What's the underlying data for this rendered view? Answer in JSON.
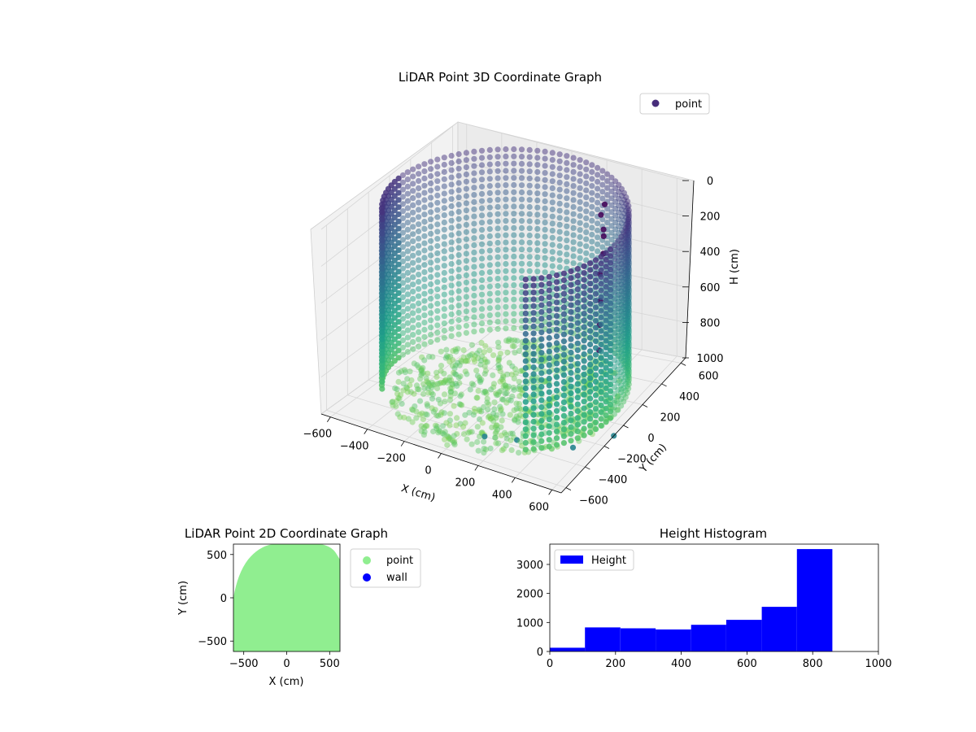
{
  "chart_data": [
    {
      "type": "scatter",
      "kind": "3d",
      "title": "LiDAR Point 3D Coordinate Graph",
      "xlabel": "X (cm)",
      "ylabel": "Y (cm)",
      "zlabel": "H (cm)",
      "xlim": [
        -650,
        650
      ],
      "ylim": [
        -650,
        650
      ],
      "zlim": [
        0,
        1000
      ],
      "z_inverted": true,
      "x_ticks": [
        -600,
        -400,
        -200,
        0,
        200,
        400,
        600
      ],
      "y_ticks": [
        -600,
        -400,
        -200,
        0,
        200,
        400,
        600
      ],
      "z_ticks": [
        0,
        200,
        400,
        600,
        800,
        1000
      ],
      "legend": {
        "placement": "top-right",
        "entries": [
          {
            "label": "point",
            "color": "#472d7b"
          }
        ]
      },
      "colormap": "viridis",
      "grid": true,
      "description_of_points": "ring wall of radius ~600 cm, height 0-1000 cm, missing a sector toward viewer; floor scatter near center; person-like cluster near (300,450)",
      "series": [
        {
          "name": "point",
          "ring_radius": 600,
          "angle_gap": [
            -2.5,
            -0.95
          ],
          "points": [
            {
              "x": 300,
              "y": 450,
              "h": 110
            },
            {
              "x": 290,
              "y": 430,
              "h": 160
            },
            {
              "x": 310,
              "y": 420,
              "h": 230
            },
            {
              "x": 300,
              "y": 440,
              "h": 280
            },
            {
              "x": 320,
              "y": 400,
              "h": 350
            },
            {
              "x": 340,
              "y": 330,
              "h": 420
            },
            {
              "x": 380,
              "y": 260,
              "h": 520
            },
            {
              "x": 420,
              "y": 180,
              "h": 600
            },
            {
              "x": 450,
              "y": 120,
              "h": 700
            },
            {
              "x": 100,
              "y": -400,
              "h": 1000
            },
            {
              "x": 250,
              "y": -350,
              "h": 1000
            },
            {
              "x": 650,
              "y": -100,
              "h": 1000
            },
            {
              "x": 520,
              "y": -280,
              "h": 1000
            }
          ]
        }
      ]
    },
    {
      "type": "scatter",
      "title": "LiDAR Point 2D Coordinate Graph",
      "xlabel": "X (cm)",
      "ylabel": "Y (cm)",
      "xlim": [
        -620,
        620
      ],
      "ylim": [
        -620,
        620
      ],
      "x_ticks": [
        -500,
        0,
        500
      ],
      "y_ticks": [
        -500,
        0,
        500
      ],
      "legend": {
        "placement": "outside-right",
        "entries": [
          {
            "label": "point",
            "color": "#90ee90"
          },
          {
            "label": "wall",
            "color": "#0000ff"
          }
        ]
      },
      "series": [
        {
          "name": "point",
          "color": "#90ee90",
          "fill_region": "near-full square, rounded top corners"
        },
        {
          "name": "wall",
          "color": "#0000ff",
          "points": []
        }
      ]
    },
    {
      "type": "bar",
      "kind": "histogram",
      "title": "Height Histogram",
      "xlim": [
        0,
        1000
      ],
      "ylim": [
        0,
        3700
      ],
      "x_ticks": [
        0,
        200,
        400,
        600,
        800,
        1000
      ],
      "y_ticks": [
        0,
        1000,
        2000,
        3000
      ],
      "legend": {
        "placement": "top-left",
        "entries": [
          {
            "label": "Height",
            "color": "#0000ff"
          }
        ]
      },
      "bin_edges": [
        0,
        107,
        215,
        322,
        430,
        537,
        645,
        752,
        860
      ],
      "series": [
        {
          "name": "Height",
          "color": "#0000ff",
          "values": [
            130,
            830,
            800,
            760,
            920,
            1090,
            1540,
            3530
          ]
        }
      ]
    }
  ]
}
